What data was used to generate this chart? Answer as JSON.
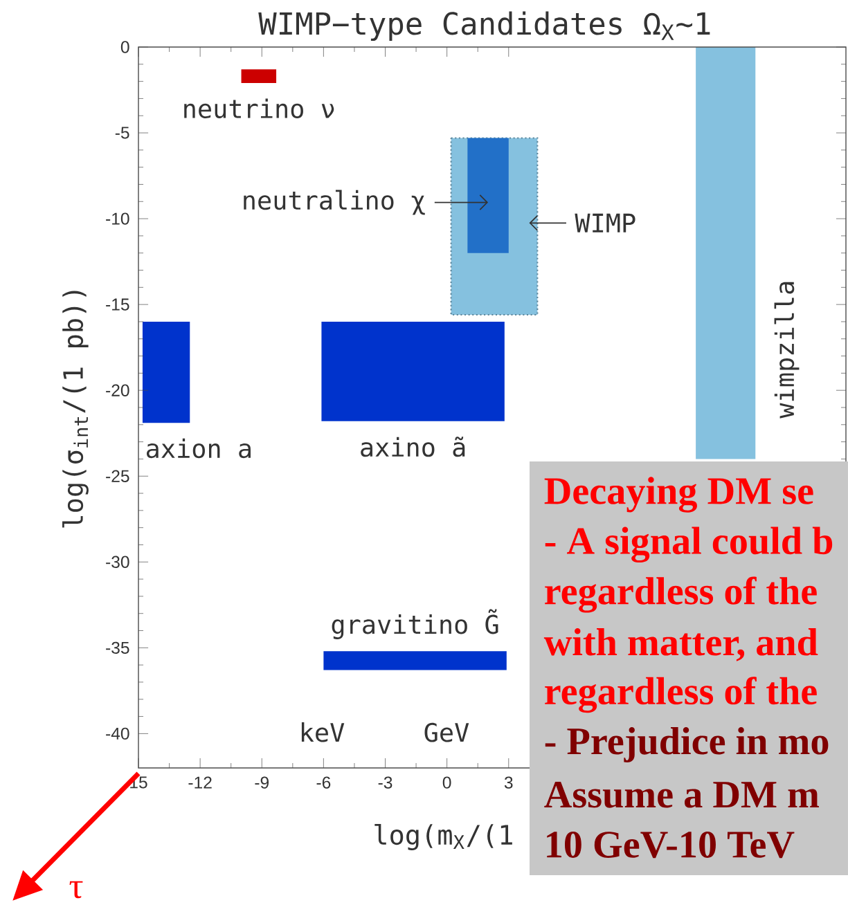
{
  "chart_data": {
    "type": "area",
    "title": "WIMP−type Candidates Ω$_{X}$~1",
    "xlabel": "log(m$_{X}$/(1",
    "ylabel": "log(σ$_{int}$/(1 pb))",
    "xlim": [
      -15,
      19.4
    ],
    "ylim": [
      -42,
      0
    ],
    "xticks": [
      {
        "value": -15,
        "label": "15"
      },
      -12,
      -9,
      -6,
      -3,
      0,
      3
    ],
    "yticks": [
      -40,
      -35,
      -30,
      -25,
      -20,
      -15,
      -10,
      -5,
      0
    ],
    "series": [
      {
        "name": "neutrino ν",
        "color": "#cc0000",
        "x": [
          -10,
          -8.3,
          -8.3,
          -10
        ],
        "values": [
          -1.3,
          -1.3,
          -2.1,
          -2.1
        ]
      },
      {
        "name": "WIMP",
        "color": "#85c1df",
        "line_style": "dotted",
        "x": [
          0.2,
          4.4,
          4.4,
          0.2
        ],
        "values": [
          -5.3,
          -5.3,
          -15.6,
          -15.6
        ]
      },
      {
        "name": "neutralino χ",
        "color": "#2270c8",
        "x": [
          1,
          3,
          3,
          1
        ],
        "values": [
          -5.3,
          -5.3,
          -12,
          -12
        ]
      },
      {
        "name": "axion a",
        "color": "#0033cc",
        "x": [
          -14.8,
          -12.5,
          -12.5,
          -14.8
        ],
        "values": [
          -16,
          -16,
          -21.9,
          -21.9
        ]
      },
      {
        "name": "axino ã",
        "color": "#0033cc",
        "x": [
          -6.1,
          2.8,
          2.8,
          -6.1
        ],
        "values": [
          -16,
          -16,
          -21.8,
          -21.8
        ]
      },
      {
        "name": "gravitino G̃",
        "color": "#0033cc",
        "x": [
          -6,
          2.9,
          2.9,
          -6
        ],
        "values": [
          -35.2,
          -35.2,
          -36.3,
          -36.3
        ]
      },
      {
        "name": "wimpzilla",
        "color": "#85c1df",
        "x": [
          12.1,
          15,
          15,
          12.1
        ],
        "values": [
          0,
          0,
          -24,
          -24
        ]
      }
    ],
    "annotations": [
      "keV",
      "GeV",
      "Decaying DM se",
      "- A signal could b",
      "regardless of the",
      "with matter, and",
      "regardless of the",
      "- Prejudice in mo",
      "Assume a DM m",
      "10 GeV-10 TeV",
      "τ"
    ]
  }
}
